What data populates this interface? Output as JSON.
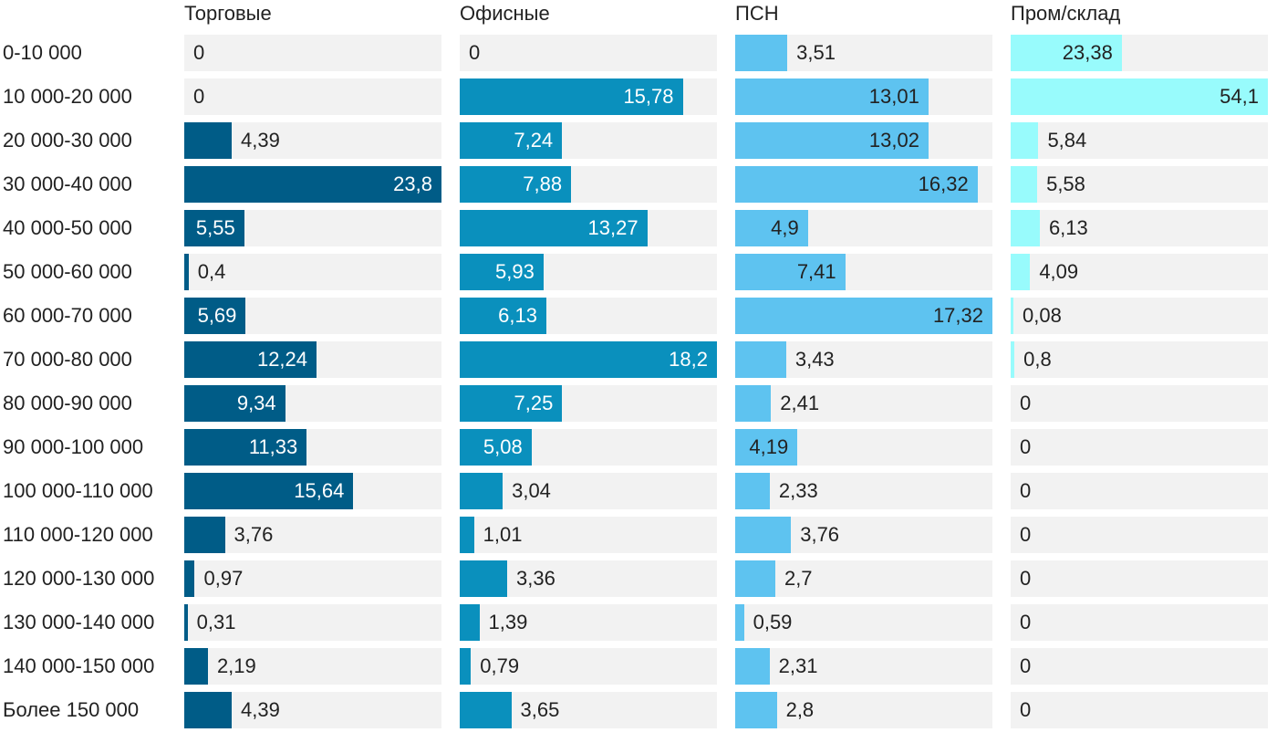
{
  "chart_data": {
    "type": "bar",
    "orientation": "horizontal",
    "layout": "small-multiples",
    "categories": [
      "0-10 000",
      "10 000-20 000",
      "20 000-30 000",
      "30 000-40 000",
      "40 000-50 000",
      "50 000-60 000",
      "60 000-70 000",
      "70 000-80 000",
      "80 000-90 000",
      "90 000-100 000",
      "100 000-110 000",
      "110 000-120 000",
      "120 000-130 000",
      "130 000-140 000",
      "140 000-150 000",
      "Более 150 000"
    ],
    "series": [
      {
        "name": "Торговые",
        "color": "#005c87",
        "label_inside_color": "#ffffff",
        "values": [
          0,
          0,
          4.39,
          23.8,
          5.55,
          0.4,
          5.69,
          12.24,
          9.34,
          11.33,
          15.64,
          3.76,
          0.97,
          0.31,
          2.19,
          4.39
        ],
        "labels": [
          "0",
          "0",
          "4,39",
          "23,8",
          "5,55",
          "0,4",
          "5,69",
          "12,24",
          "9,34",
          "11,33",
          "15,64",
          "3,76",
          "0,97",
          "0,31",
          "2,19",
          "4,39"
        ]
      },
      {
        "name": "Офисные",
        "color": "#0a90bd",
        "label_inside_color": "#ffffff",
        "values": [
          0,
          15.78,
          7.24,
          7.88,
          13.27,
          5.93,
          6.13,
          18.2,
          7.25,
          5.08,
          3.04,
          1.01,
          3.36,
          1.39,
          0.79,
          3.65
        ],
        "labels": [
          "0",
          "15,78",
          "7,24",
          "7,88",
          "13,27",
          "5,93",
          "6,13",
          "18,2",
          "7,25",
          "5,08",
          "3,04",
          "1,01",
          "3,36",
          "1,39",
          "0,79",
          "3,65"
        ]
      },
      {
        "name": "ПСН",
        "color": "#5ec3f0",
        "label_inside_color": "#222222",
        "values": [
          3.51,
          13.01,
          13.02,
          16.32,
          4.9,
          7.41,
          17.32,
          3.43,
          2.41,
          4.19,
          2.33,
          3.76,
          2.7,
          0.59,
          2.31,
          2.8
        ],
        "labels": [
          "3,51",
          "13,01",
          "13,02",
          "16,32",
          "4,9",
          "7,41",
          "17,32",
          "3,43",
          "2,41",
          "4,19",
          "2,33",
          "3,76",
          "2,7",
          "0,59",
          "2,31",
          "2,8"
        ]
      },
      {
        "name": "Пром/склад",
        "color": "#98fbfc",
        "label_inside_color": "#222222",
        "values": [
          23.38,
          54.1,
          5.84,
          5.58,
          6.13,
          4.09,
          0.08,
          0.8,
          0,
          0,
          0,
          0,
          0,
          0,
          0,
          0
        ],
        "labels": [
          "23,38",
          "54,1",
          "5,84",
          "5,58",
          "6,13",
          "4,09",
          "0,08",
          "0,8",
          "0",
          "0",
          "0",
          "0",
          "0",
          "0",
          "0",
          "0"
        ]
      }
    ],
    "xlim": [
      [
        0,
        23.8
      ],
      [
        0,
        18.2
      ],
      [
        0,
        17.32
      ],
      [
        0,
        54.1
      ]
    ],
    "track_color": "#f2f2f2",
    "outside_label_color": "#222222",
    "legend": "none",
    "grid": false
  }
}
